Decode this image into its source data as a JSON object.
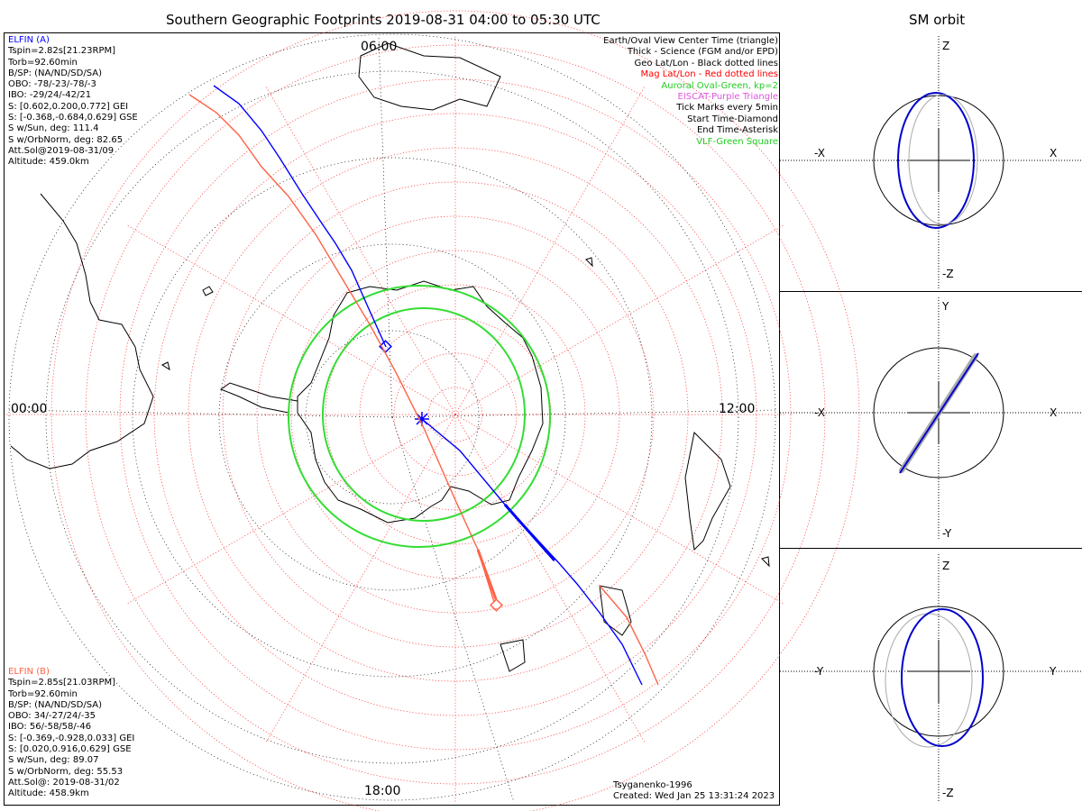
{
  "title": "Southern Geographic Footprints 2019-08-31 04:00 to 05:30 UTC",
  "side_title": "SM orbit",
  "elfin_a": {
    "header": "ELFIN (A)",
    "color": "#0000ff",
    "lines": [
      "Tspin=2.82s[21.23RPM]",
      "Torb=92.60min",
      "B/SP: (NA/ND/SD/SA)",
      "OBO: -78/-23/-78/-3",
      "IBO: -29/24/-42/21",
      "S: [0.602,0.200,0.772] GEI",
      "S: [-0.368,-0.684,0.629] GSE",
      "S w/Sun, deg: 111.4",
      "S w/OrbNorm, deg: 82.65",
      "Att.Sol@2019-08-31/09",
      "Altitude: 459.0km"
    ]
  },
  "elfin_b": {
    "header": "ELFIN (B)",
    "color": "#ff6347",
    "lines": [
      "Tspin=2.85s[21.03RPM]",
      "Torb=92.60min",
      "B/SP: (NA/ND/SD/SA)",
      "OBO: 34/-27/24/-35",
      "IBO: 56/-58/58/-46",
      "S: [-0.369,-0.928,0.033] GEI",
      "S: [0.020,0.916,0.629] GSE",
      "S w/Sun, deg: 89.07",
      "S w/OrbNorm, deg: 55.53",
      "Att.Sol@: 2019-08-31/02",
      "Altitude: 458.9km"
    ]
  },
  "legend": [
    {
      "text": "Earth/Oval View Center Time (triangle)",
      "color": "#000000"
    },
    {
      "text": "Thick - Science (FGM and/or EPD)",
      "color": "#000000"
    },
    {
      "text": "Geo Lat/Lon - Black dotted lines",
      "color": "#000000"
    },
    {
      "text": "Mag Lat/Lon - Red dotted lines",
      "color": "#ff0000"
    },
    {
      "text": "Auroral Oval-Green, kp=2",
      "color": "#22cc22"
    },
    {
      "text": "EISCAT-Purple Triangle",
      "color": "#dd55dd"
    },
    {
      "text": "Tick Marks every 5min",
      "color": "#000000"
    },
    {
      "text": "Start Time-Diamond",
      "color": "#000000"
    },
    {
      "text": "End Time-Asterisk",
      "color": "#000000"
    },
    {
      "text": "VLF-Green Square",
      "color": "#22cc22"
    }
  ],
  "time_labels": {
    "top": "06:00",
    "left": "00:00",
    "right": "12:00",
    "bottom": "18:00"
  },
  "credit": [
    "Tsyganenko-1996",
    "Created: Wed Jan 25 13:31:24 2023"
  ],
  "panels": [
    {
      "name": "xz",
      "up": "Z",
      "down": "-Z",
      "left": "-X",
      "right": "X"
    },
    {
      "name": "xy",
      "up": "Y",
      "down": "-Y",
      "left": "-X",
      "right": "X"
    },
    {
      "name": "yz",
      "up": "Z",
      "down": "-Z",
      "left": "-Y",
      "right": "Y"
    }
  ]
}
